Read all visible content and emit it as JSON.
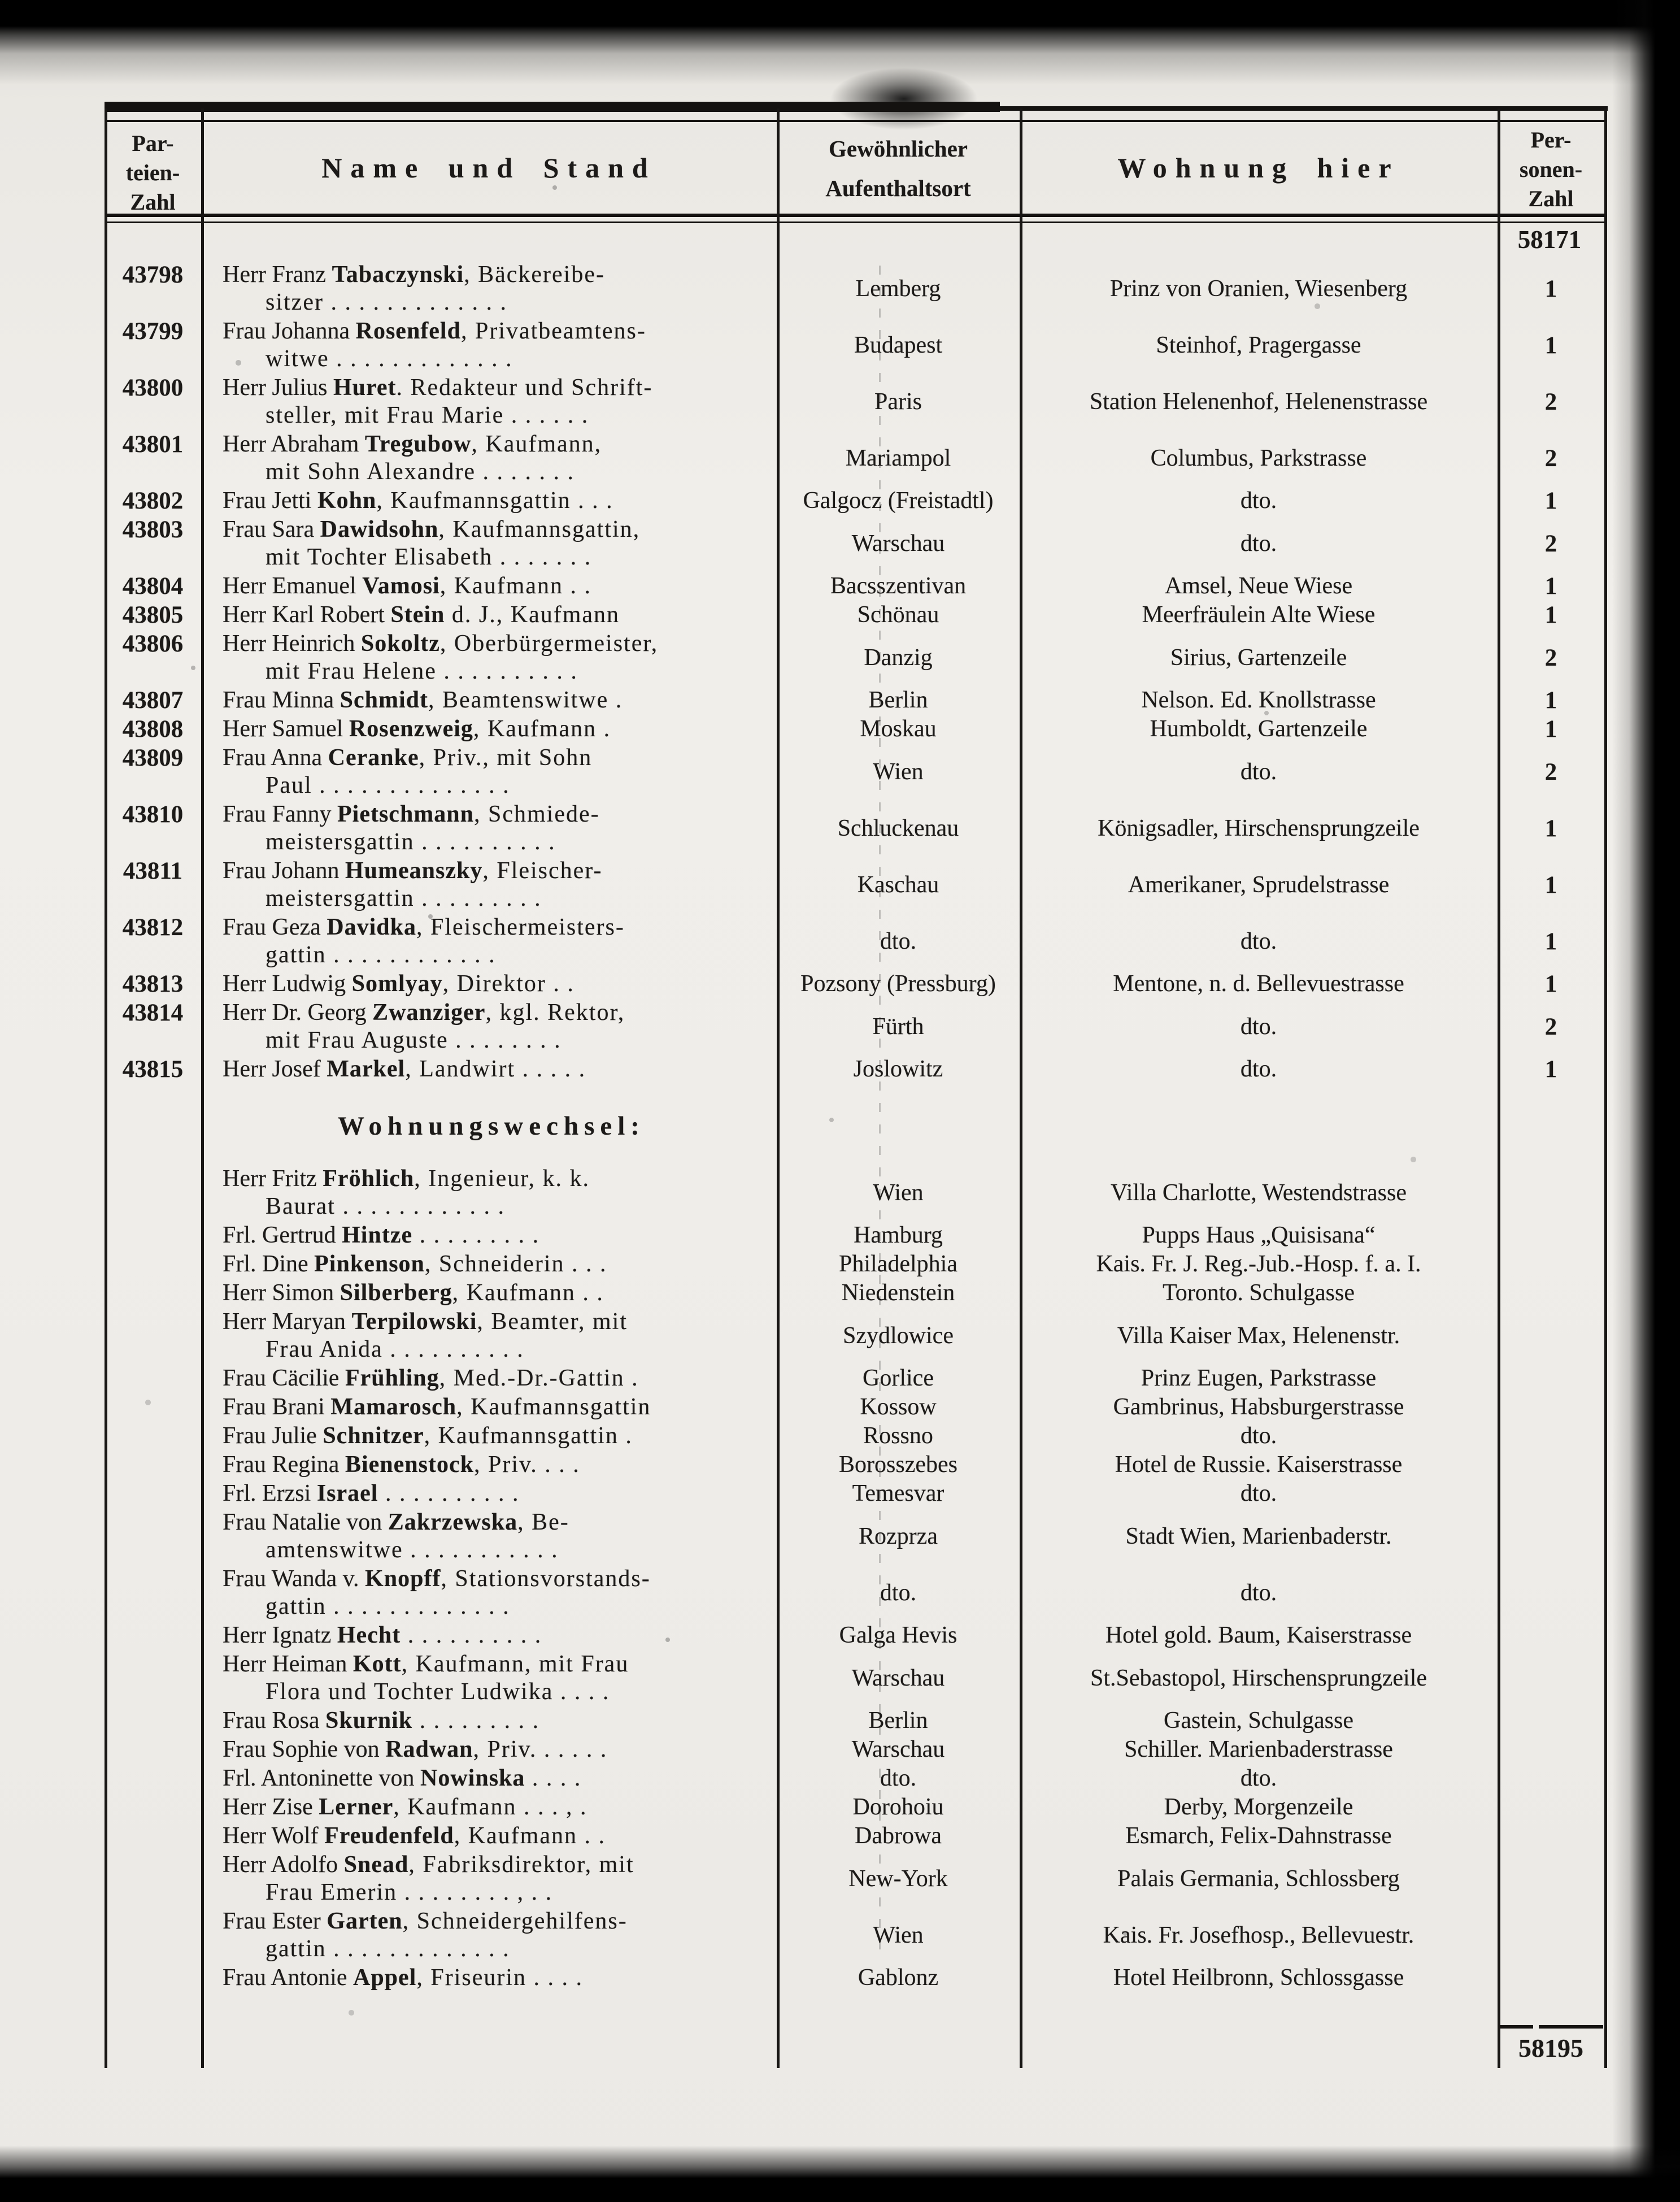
{
  "page": {
    "carry_forward": "58171",
    "carry_total": "58195"
  },
  "header": {
    "parteien": [
      "Par-",
      "teien-",
      "Zahl"
    ],
    "name_stand": "Name und Stand",
    "aufenthalt": [
      "Gewöhnlicher",
      "Aufenthaltsort"
    ],
    "wohnung_hier": "Wohnung hier",
    "personen": [
      "Per-",
      "sonen-",
      "Zahl"
    ]
  },
  "section_change_title": "Wohnungswechsel:",
  "rows": [
    {
      "nr": "43798",
      "pre": "Herr Franz ",
      "bold": "Tabaczynski",
      "post": ", Bäckereibe-",
      "line2": "sitzer . . . . . . . . . . . . .",
      "ort": "Lemberg",
      "wohnung": "Prinz von Oranien, Wiesenberg",
      "personen": "1"
    },
    {
      "nr": "43799",
      "pre": "Frau Johanna ",
      "bold": "Rosenfeld",
      "post": ", Privatbeamtens-",
      "line2": "witwe . . . . . . . . . . . . .",
      "ort": "Budapest",
      "wohnung": "Steinhof, Pragergasse",
      "personen": "1"
    },
    {
      "nr": "43800",
      "pre": "Herr Julius ",
      "bold": "Huret",
      "post": ". Redakteur und Schrift-",
      "line2": "steller, mit Frau Marie . . . . . .",
      "ort": "Paris",
      "wohnung": "Station Helenenhof, Helenenstrasse",
      "personen": "2"
    },
    {
      "nr": "43801",
      "pre": "Herr Abraham ",
      "bold": "Tregubow",
      "post": ", Kaufmann,",
      "line2": "mit Sohn Alexandre . . . . . . .",
      "ort": "Mariampol",
      "wohnung": "Columbus, Parkstrasse",
      "personen": "2"
    },
    {
      "nr": "43802",
      "pre": "Frau Jetti ",
      "bold": "Kohn",
      "post": ", Kaufmannsgattin . . .",
      "line2": null,
      "ort": "Galgocz (Freistadtl)",
      "wohnung": "dto.",
      "personen": "1"
    },
    {
      "nr": "43803",
      "pre": "Frau Sara ",
      "bold": "Dawidsohn",
      "post": ", Kaufmannsgattin,",
      "line2": "mit Tochter Elisabeth . . . . . . .",
      "ort": "Warschau",
      "wohnung": "dto.",
      "personen": "2"
    },
    {
      "nr": "43804",
      "pre": "Herr Emanuel ",
      "bold": "Vamosi",
      "post": ", Kaufmann . .",
      "line2": null,
      "ort": "Bacsszentivan",
      "wohnung": "Amsel, Neue Wiese",
      "personen": "1"
    },
    {
      "nr": "43805",
      "pre": "Herr Karl Robert ",
      "bold": "Stein",
      "post": " d. J., Kaufmann",
      "line2": null,
      "ort": "Schönau",
      "wohnung": "Meerfräulein Alte Wiese",
      "personen": "1"
    },
    {
      "nr": "43806",
      "pre": "Herr Heinrich ",
      "bold": "Sokoltz",
      "post": ", Oberbürgermeister,",
      "line2": "mit Frau Helene . . . . . . . . . .",
      "ort": "Danzig",
      "wohnung": "Sirius, Gartenzeile",
      "personen": "2"
    },
    {
      "nr": "43807",
      "pre": "Frau Minna ",
      "bold": "Schmidt",
      "post": ", Beamtenswitwe .",
      "line2": null,
      "ort": "Berlin",
      "wohnung": "Nelson. Ed. Knollstrasse",
      "personen": "1"
    },
    {
      "nr": "43808",
      "pre": "Herr Samuel ",
      "bold": "Rosenzweig",
      "post": ", Kaufmann .",
      "line2": null,
      "ort": "Moskau",
      "wohnung": "Humboldt, Gartenzeile",
      "personen": "1"
    },
    {
      "nr": "43809",
      "pre": "Frau Anna ",
      "bold": "Ceranke",
      "post": ", Priv., mit Sohn",
      "line2": "Paul . . . . . . . . . . . . . .",
      "ort": "Wien",
      "wohnung": "dto.",
      "personen": "2"
    },
    {
      "nr": "43810",
      "pre": "Frau Fanny ",
      "bold": "Pietschmann",
      "post": ", Schmiede-",
      "line2": "meistersgattin . . . . . . . . . .",
      "ort": "Schluckenau",
      "wohnung": "Königsadler, Hirschensprungzeile",
      "personen": "1"
    },
    {
      "nr": "43811",
      "pre": "Frau Johann ",
      "bold": "Humeanszky",
      "post": ", Fleischer-",
      "line2": "meistersgattin . . . . . . . . .",
      "ort": "Kaschau",
      "wohnung": "Amerikaner, Sprudelstrasse",
      "personen": "1"
    },
    {
      "nr": "43812",
      "pre": "Frau Geza ",
      "bold": "Davidka",
      "post": ", Fleischermeisters-",
      "line2": "gattin . . . . . . . . . . . .",
      "ort": "dto.",
      "wohnung": "dto.",
      "personen": "1"
    },
    {
      "nr": "43813",
      "pre": "Herr Ludwig ",
      "bold": "Somlyay",
      "post": ", Direktor . .",
      "line2": null,
      "ort": "Pozsony (Pressburg)",
      "wohnung": "Mentone, n. d. Bellevuestrasse",
      "personen": "1"
    },
    {
      "nr": "43814",
      "pre": "Herr Dr. Georg ",
      "bold": "Zwanziger",
      "post": ", kgl. Rektor,",
      "line2": "mit Frau Auguste . . . . . . . .",
      "ort": "Fürth",
      "wohnung": "dto.",
      "personen": "2"
    },
    {
      "nr": "43815",
      "pre": "Herr Josef ",
      "bold": "Markel",
      "post": ", Landwirt . . . . .",
      "line2": null,
      "ort": "Joslowitz",
      "wohnung": "dto.",
      "personen": "1"
    }
  ],
  "wechsel_rows": [
    {
      "pre": "Herr Fritz ",
      "bold": "Fröhlich",
      "post": ", Ingenieur, k. k.",
      "line2": "Baurat . . . . . . . . . . . .",
      "ort": "Wien",
      "wohnung": "Villa Charlotte, Westendstrasse"
    },
    {
      "pre": "Frl. Gertrud ",
      "bold": "Hintze",
      "post": " . . . . . . . . .",
      "line2": null,
      "ort": "Hamburg",
      "wohnung": "Pupps Haus „Quisisana“"
    },
    {
      "pre": "Frl. Dine ",
      "bold": "Pinkenson",
      "post": ", Schneiderin . . .",
      "line2": null,
      "ort": "Philadelphia",
      "wohnung": "Kais. Fr. J. Reg.-Jub.-Hosp. f. a. I."
    },
    {
      "pre": "Herr Simon ",
      "bold": "Silberberg",
      "post": ", Kaufmann . .",
      "line2": null,
      "ort": "Niedenstein",
      "wohnung": "Toronto. Schulgasse"
    },
    {
      "pre": "Herr Maryan ",
      "bold": "Terpilowski",
      "post": ", Beamter, mit",
      "line2": "Frau Anida . . . . . . . . . .",
      "ort": "Szydlowice",
      "wohnung": "Villa Kaiser Max, Helenenstr."
    },
    {
      "pre": "Frau Cäcilie ",
      "bold": "Frühling",
      "post": ", Med.-Dr.-Gattin .",
      "line2": null,
      "ort": "Gorlice",
      "wohnung": "Prinz Eugen, Parkstrasse"
    },
    {
      "pre": "Frau Brani ",
      "bold": "Mamarosch",
      "post": ", Kaufmannsgattin",
      "line2": null,
      "ort": "Kossow",
      "wohnung": "Gambrinus, Habsburgerstrasse"
    },
    {
      "pre": "Frau Julie ",
      "bold": "Schnitzer",
      "post": ", Kaufmannsgattin .",
      "line2": null,
      "ort": "Rossno",
      "wohnung": "dto."
    },
    {
      "pre": "Frau Regina ",
      "bold": "Bienenstock",
      "post": ", Priv. . . .",
      "line2": null,
      "ort": "Borosszebes",
      "wohnung": "Hotel de Russie. Kaiserstrasse"
    },
    {
      "pre": "Frl. Erzsi ",
      "bold": "Israel",
      "post": " . . . . . . . . . .",
      "line2": null,
      "ort": "Temesvar",
      "wohnung": "dto."
    },
    {
      "pre": "Frau Natalie von ",
      "bold": "Zakrzewska",
      "post": ", Be-",
      "line2": "amtenswitwe . . . . . . . . . . .",
      "ort": "Rozprza",
      "wohnung": "Stadt Wien, Marienbaderstr."
    },
    {
      "pre": "Frau Wanda v. ",
      "bold": "Knopff",
      "post": ", Stationsvorstands-",
      "line2": "gattin . . . . . . . . . . . . .",
      "ort": "dto.",
      "wohnung": "dto."
    },
    {
      "pre": "Herr Ignatz ",
      "bold": "Hecht",
      "post": " . . . . . . . . . .",
      "line2": null,
      "ort": "Galga Hevis",
      "wohnung": "Hotel gold. Baum, Kaiserstrasse"
    },
    {
      "pre": "Herr Heiman ",
      "bold": "Kott",
      "post": ", Kaufmann, mit Frau",
      "line2": "Flora und Tochter Ludwika . . . .",
      "ort": "Warschau",
      "wohnung": "St.Sebastopol, Hirschensprungzeile"
    },
    {
      "pre": "Frau Rosa ",
      "bold": "Skurnik",
      "post": " . . . . . . . . .",
      "line2": null,
      "ort": "Berlin",
      "wohnung": "Gastein, Schulgasse"
    },
    {
      "pre": "Frau Sophie von ",
      "bold": "Radwan",
      "post": ", Priv. . . . . .",
      "line2": null,
      "ort": "Warschau",
      "wohnung": "Schiller. Marienbaderstrasse"
    },
    {
      "pre": "Frl. Antoninette von ",
      "bold": "Nowinska",
      "post": " . . . .",
      "line2": null,
      "ort": "dto.",
      "wohnung": "dto."
    },
    {
      "pre": "Herr Zise ",
      "bold": "Lerner",
      "post": ", Kaufmann . . . , .",
      "line2": null,
      "ort": "Dorohoiu",
      "wohnung": "Derby, Morgenzeile"
    },
    {
      "pre": "Herr Wolf ",
      "bold": "Freudenfeld",
      "post": ", Kaufmann . .",
      "line2": null,
      "ort": "Dabrowa",
      "wohnung": "Esmarch, Felix-Dahnstrasse"
    },
    {
      "pre": "Herr Adolfo ",
      "bold": "Snead",
      "post": ", Fabriksdirektor, mit",
      "line2": "Frau Emerin . . . . . . . . , . .",
      "ort": "New-York",
      "wohnung": "Palais Germania, Schlossberg"
    },
    {
      "pre": "Frau Ester ",
      "bold": "Garten",
      "post": ", Schneidergehilfens-",
      "line2": "gattin . . . . . . . . . . . . .",
      "ort": "Wien",
      "wohnung": "Kais. Fr. Josefhosp., Bellevuestr."
    },
    {
      "pre": "Frau Antonie ",
      "bold": "Appel",
      "post": ", Friseurin . . . .",
      "line2": null,
      "ort": "Gablonz",
      "wohnung": "Hotel Heilbronn, Schlossgasse"
    }
  ]
}
